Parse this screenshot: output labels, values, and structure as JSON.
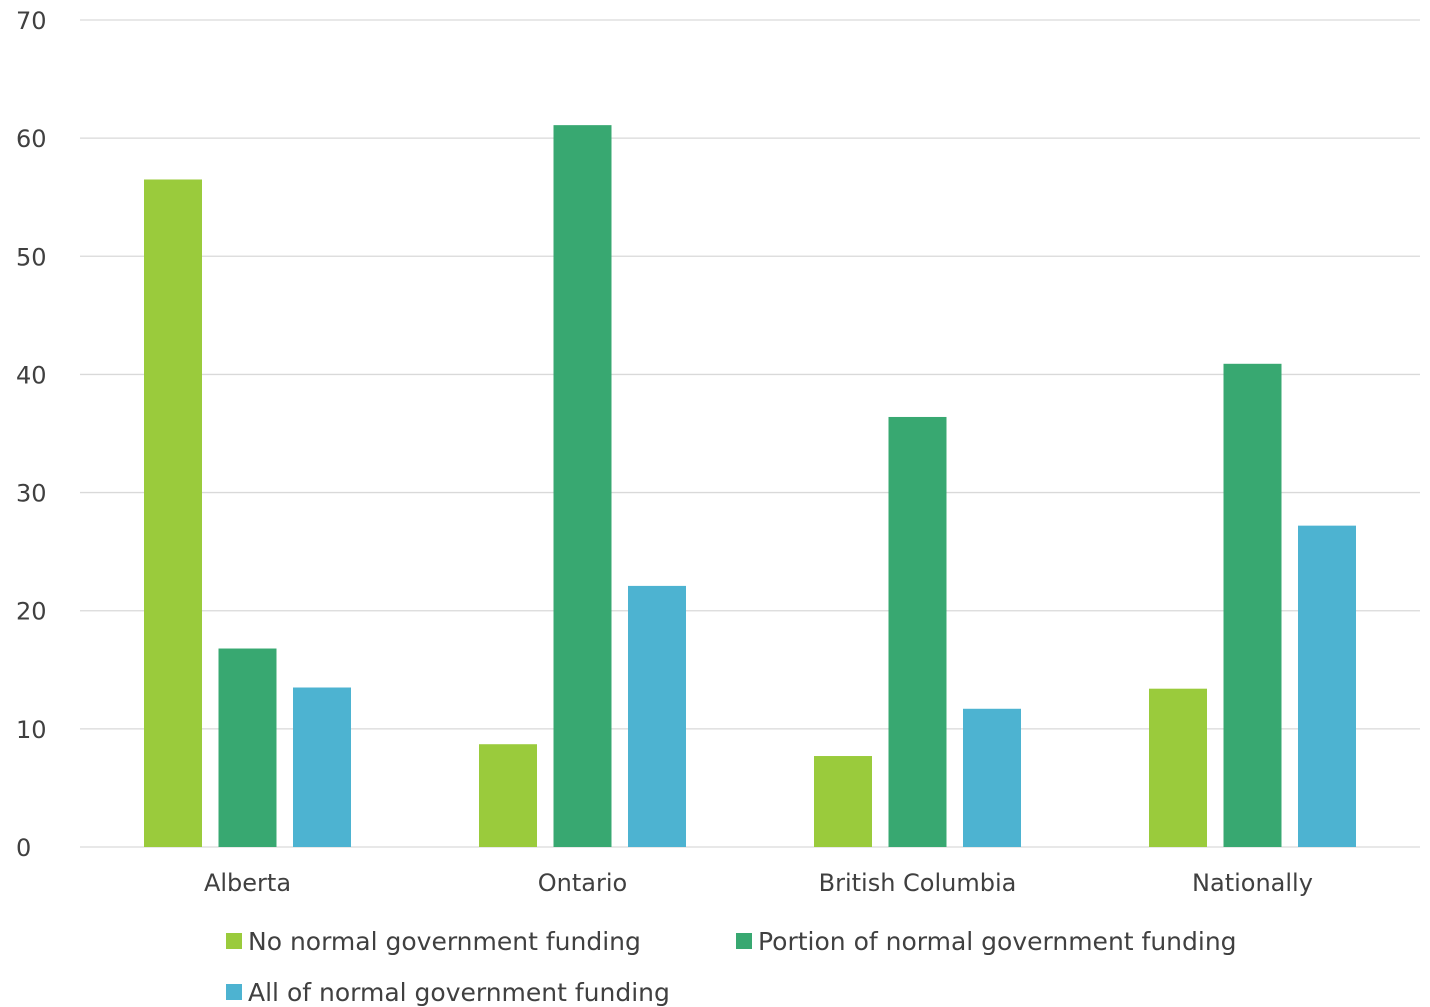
{
  "chart_data": {
    "type": "bar",
    "categories": [
      "Alberta",
      "Ontario",
      "British Columbia",
      "Nationally"
    ],
    "series": [
      {
        "name": "No normal government funding",
        "color": "#9acb3c",
        "values": [
          56.5,
          8.7,
          7.7,
          13.4
        ]
      },
      {
        "name": "Portion of normal government funding",
        "color": "#38a871",
        "values": [
          16.8,
          61.1,
          36.4,
          40.9
        ]
      },
      {
        "name": "All of normal government funding",
        "color": "#4db3d1",
        "values": [
          13.5,
          22.1,
          11.7,
          27.2
        ]
      }
    ],
    "ylim": [
      0,
      70
    ],
    "yticks": [
      0,
      10,
      20,
      30,
      40,
      50,
      60,
      70
    ],
    "grid": true,
    "legend_position": "bottom",
    "gridline_color": "#d9d9d9"
  }
}
